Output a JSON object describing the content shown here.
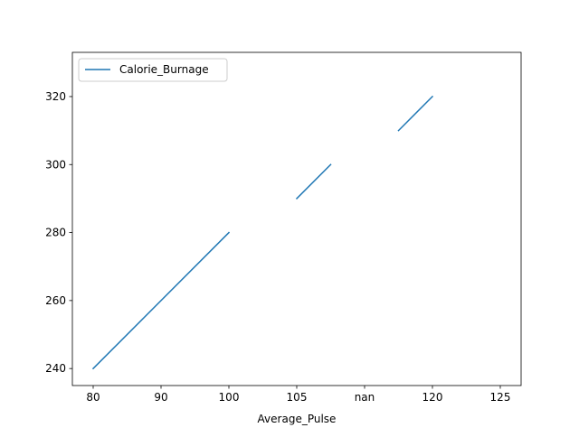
{
  "chart_data": {
    "type": "line",
    "xlabel": "Average_Pulse",
    "ylabel": "",
    "x_tick_labels": [
      "80",
      "90",
      "100",
      "105",
      "nan",
      "120",
      "125"
    ],
    "y_ticks": [
      240,
      260,
      280,
      300,
      320
    ],
    "ylim": [
      235,
      333
    ],
    "legend_position": "top-left",
    "grid": false,
    "series": [
      {
        "name": "Calorie_Burnage",
        "color": "#1f77b4",
        "segments": [
          {
            "x_index": [
              0,
              1,
              2
            ],
            "y": [
              240,
              260,
              280
            ]
          },
          {
            "x_index": [
              3,
              3.5
            ],
            "y": [
              290,
              300
            ]
          },
          {
            "x_index": [
              4.5,
              5
            ],
            "y": [
              310,
              320
            ]
          }
        ]
      }
    ]
  }
}
